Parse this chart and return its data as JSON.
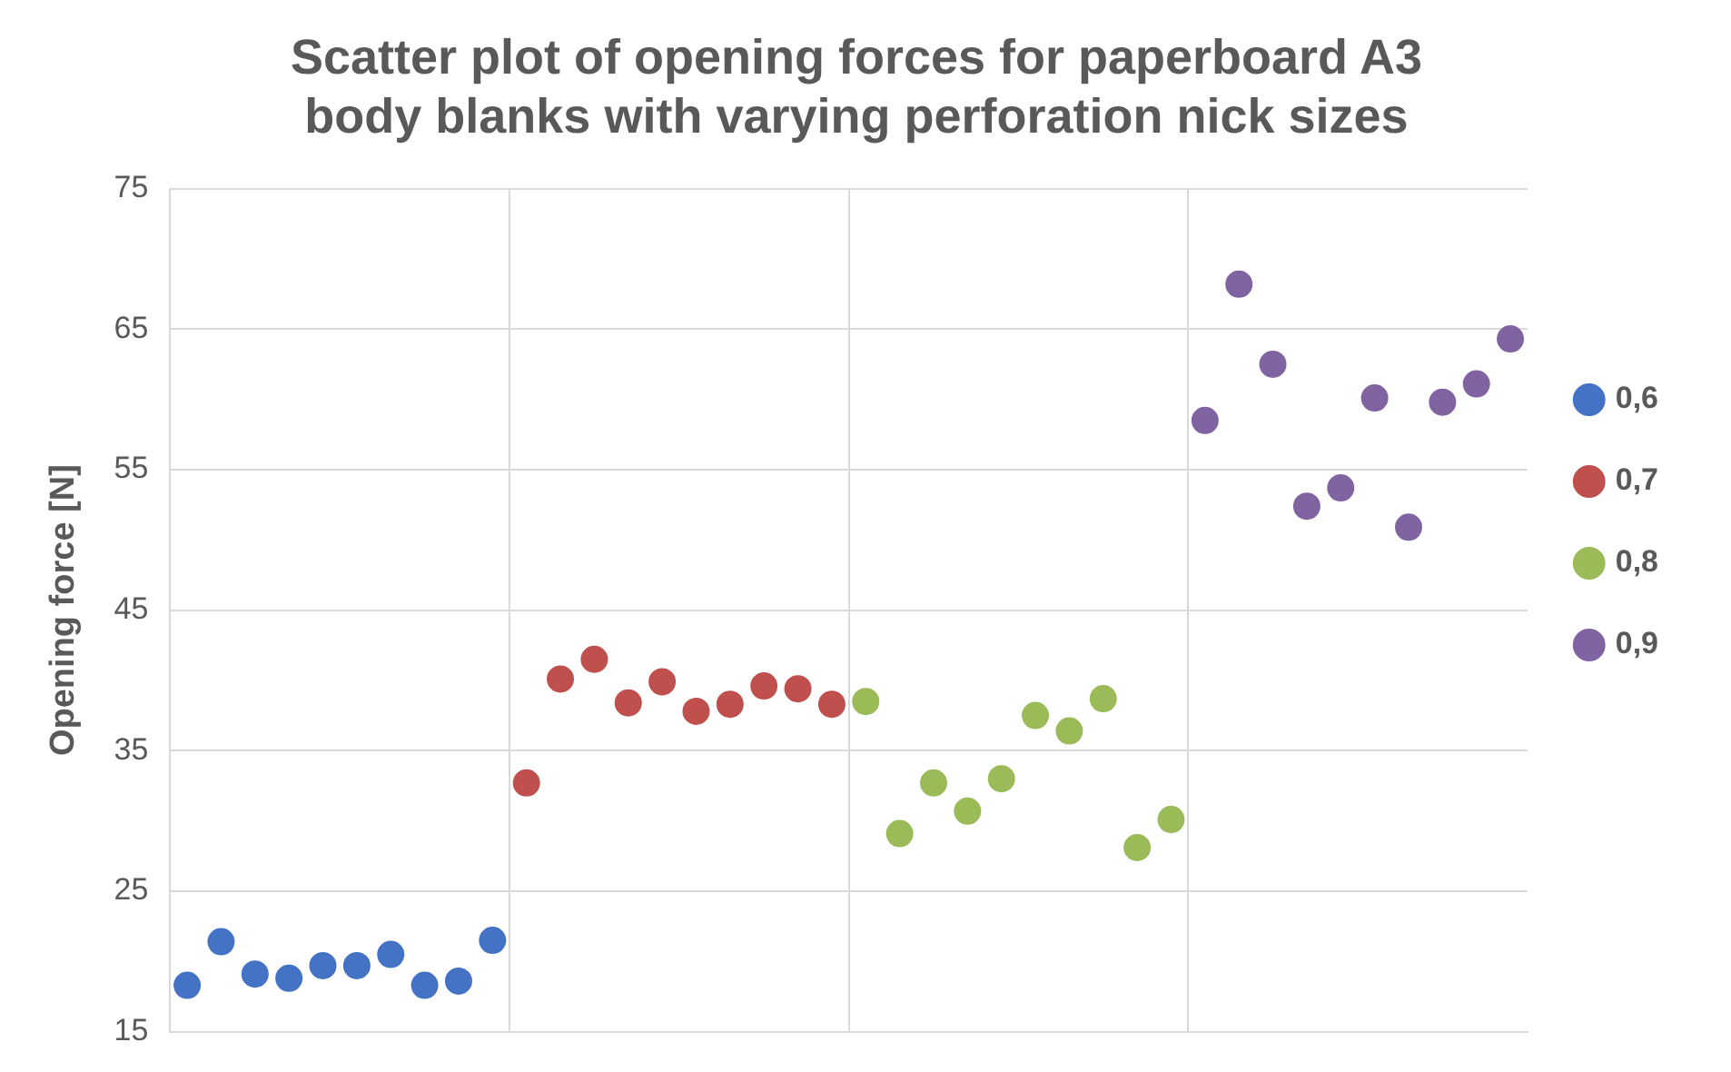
{
  "chart_data": {
    "type": "scatter",
    "title": "Scatter plot of opening forces for paperboard A3 body blanks with varying perforation nick sizes",
    "ylabel": "Opening force [N]",
    "categories": [
      null,
      null,
      null,
      null,
      null,
      null,
      null,
      null,
      null,
      null,
      null,
      null,
      null,
      null,
      null,
      null,
      null,
      null,
      null,
      null,
      null,
      null,
      null,
      null,
      null,
      null,
      null,
      null,
      null,
      null,
      null,
      null,
      null,
      null,
      null,
      null,
      null,
      null,
      null,
      null
    ],
    "series": [
      {
        "name": "0,6",
        "color": "#4472c4",
        "values": [
          18.3,
          21.4,
          19.1,
          18.8,
          19.7,
          19.7,
          20.5,
          18.3,
          18.6,
          21.5,
          null,
          null,
          null,
          null,
          null,
          null,
          null,
          null,
          null,
          null,
          null,
          null,
          null,
          null,
          null,
          null,
          null,
          null,
          null,
          null,
          null,
          null,
          null,
          null,
          null,
          null,
          null,
          null,
          null,
          null
        ]
      },
      {
        "name": "0,7",
        "color": "#c0504d",
        "values": [
          null,
          null,
          null,
          null,
          null,
          null,
          null,
          null,
          null,
          null,
          32.7,
          40.1,
          41.5,
          38.4,
          39.9,
          37.8,
          38.3,
          39.6,
          39.4,
          38.3,
          null,
          null,
          null,
          null,
          null,
          null,
          null,
          null,
          null,
          null,
          null,
          null,
          null,
          null,
          null,
          null,
          null,
          null,
          null,
          null
        ]
      },
      {
        "name": "0,8",
        "color": "#9bbb59",
        "values": [
          null,
          null,
          null,
          null,
          null,
          null,
          null,
          null,
          null,
          null,
          null,
          null,
          null,
          null,
          null,
          null,
          null,
          null,
          null,
          null,
          38.5,
          29.1,
          32.7,
          30.7,
          33.0,
          37.5,
          36.4,
          38.7,
          28.1,
          30.1,
          null,
          null,
          null,
          null,
          null,
          null,
          null,
          null,
          null,
          null
        ]
      },
      {
        "name": "0,9",
        "color": "#8064a2",
        "values": [
          null,
          null,
          null,
          null,
          null,
          null,
          null,
          null,
          null,
          null,
          null,
          null,
          null,
          null,
          null,
          null,
          null,
          null,
          null,
          null,
          null,
          null,
          null,
          null,
          null,
          null,
          null,
          null,
          null,
          null,
          58.5,
          68.2,
          62.5,
          52.4,
          53.7,
          60.1,
          50.9,
          59.8,
          61.1,
          64.3
        ]
      }
    ],
    "ylim": [
      15,
      75
    ],
    "yticks": [
      15,
      25,
      35,
      45,
      55,
      65,
      75
    ],
    "grid": true,
    "legend": "right",
    "marker": "circle"
  }
}
